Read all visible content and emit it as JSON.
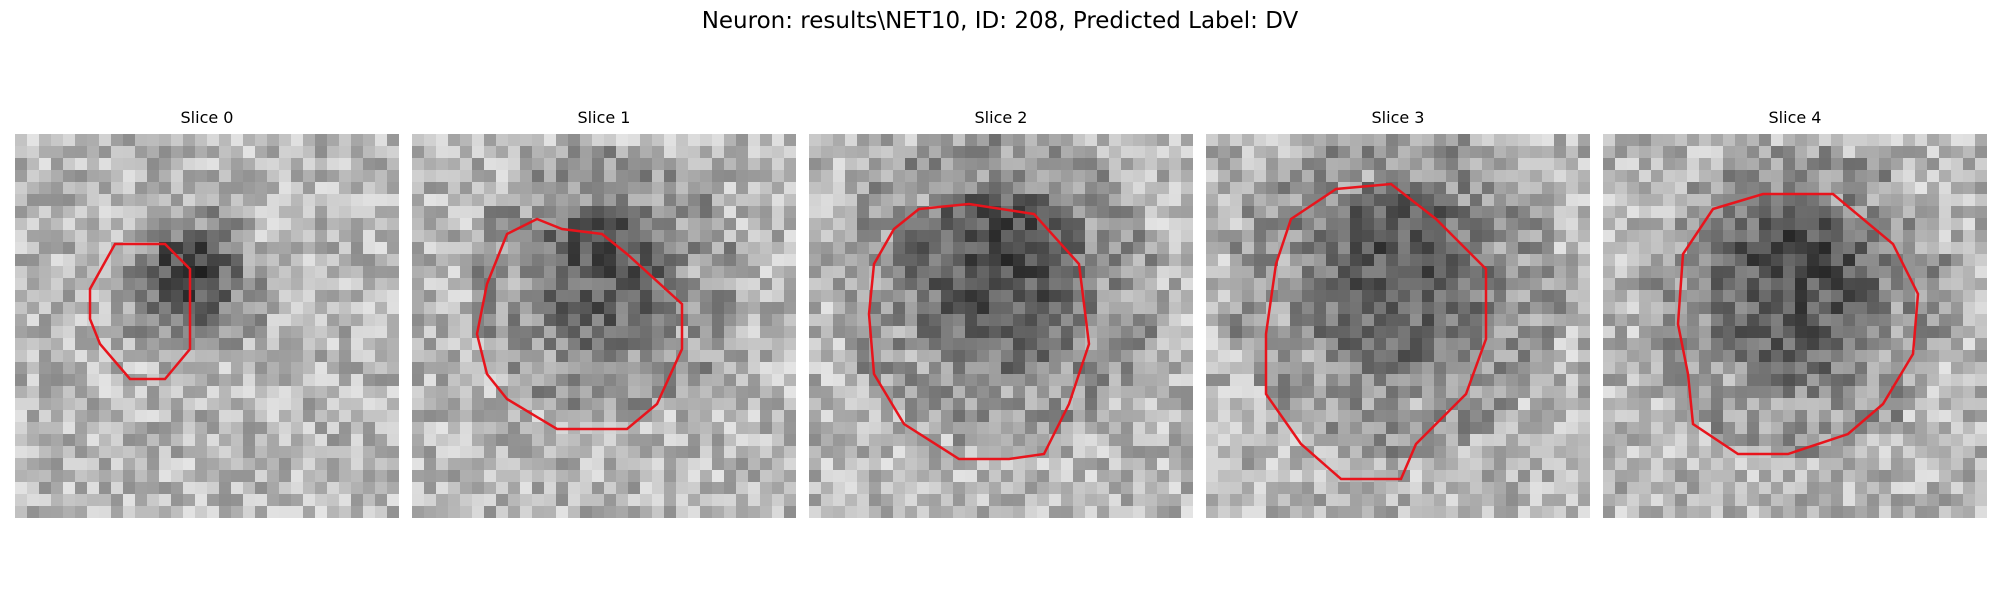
{
  "title": "Neuron: results\\NET10, ID: 208, Predicted Label: DV",
  "contour_color": "#e8141c",
  "slices": [
    {
      "label": "Slice 0"
    },
    {
      "label": "Slice 1"
    },
    {
      "label": "Slice 2"
    },
    {
      "label": "Slice 3"
    },
    {
      "label": "Slice 4"
    }
  ]
}
